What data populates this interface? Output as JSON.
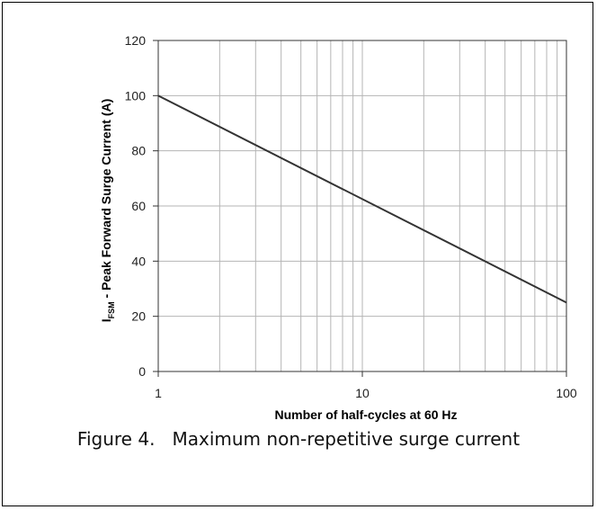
{
  "figure": {
    "caption": "Figure 4.   Maximum non-repetitive surge current"
  },
  "chart_data": {
    "type": "line",
    "xscale": "log",
    "xlim": [
      1,
      100
    ],
    "ylim": [
      0,
      120
    ],
    "xticks": [
      1,
      10,
      100
    ],
    "yticks": [
      0,
      20,
      40,
      60,
      80,
      100,
      120
    ],
    "grid": true,
    "xlabel": "Number of half-cycles at 60 Hz",
    "ylabel": {
      "main": "I",
      "subscript": "FSM",
      "rest": " - Peak Forward Surge Current (A)"
    },
    "series": [
      {
        "x": [
          1,
          100
        ],
        "y": [
          100,
          25
        ],
        "color": "#333333"
      }
    ]
  }
}
